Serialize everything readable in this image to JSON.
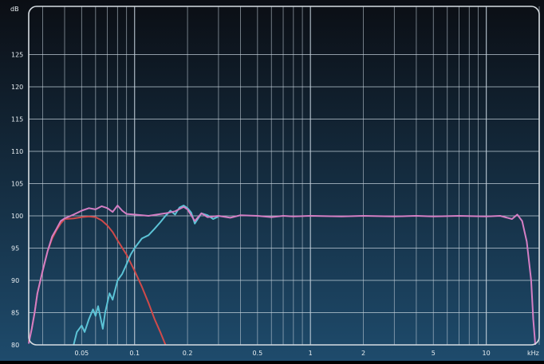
{
  "chart_data": {
    "type": "line",
    "title": "",
    "xlabel": "kHz",
    "ylabel": "dB",
    "x_scale": "log",
    "xlim": [
      0.025,
      20
    ],
    "ylim": [
      80,
      130
    ],
    "grid": true,
    "legend": "none",
    "x_ticks": [
      {
        "value": 0.05,
        "label": "0.05"
      },
      {
        "value": 0.1,
        "label": "0.1"
      },
      {
        "value": 0.2,
        "label": "0.2"
      },
      {
        "value": 0.5,
        "label": "0.5"
      },
      {
        "value": 1,
        "label": "1"
      },
      {
        "value": 2,
        "label": "2"
      },
      {
        "value": 5,
        "label": "5"
      },
      {
        "value": 10,
        "label": "10"
      }
    ],
    "y_ticks": [
      {
        "value": 80,
        "label": "80"
      },
      {
        "value": 85,
        "label": "85"
      },
      {
        "value": 90,
        "label": "90"
      },
      {
        "value": 95,
        "label": "95"
      },
      {
        "value": 100,
        "label": "100"
      },
      {
        "value": 105,
        "label": "105"
      },
      {
        "value": 110,
        "label": "110"
      },
      {
        "value": 115,
        "label": "115"
      },
      {
        "value": 120,
        "label": "120"
      },
      {
        "value": 125,
        "label": "125"
      }
    ],
    "colors": {
      "background_top": "#0b0e14",
      "background_bottom": "#1e4b6c",
      "grid": "#c9d6e0",
      "text": "#e8eef2",
      "frame": "#d7dde2"
    },
    "series": [
      {
        "color": "#cf4a4a",
        "points": [
          [
            0.025,
            80.5
          ],
          [
            0.026,
            82.5
          ],
          [
            0.027,
            85.0
          ],
          [
            0.028,
            88.0
          ],
          [
            0.03,
            91.5
          ],
          [
            0.032,
            94.5
          ],
          [
            0.034,
            96.5
          ],
          [
            0.036,
            97.8
          ],
          [
            0.038,
            98.8
          ],
          [
            0.04,
            99.5
          ],
          [
            0.045,
            99.6
          ],
          [
            0.05,
            99.8
          ],
          [
            0.055,
            99.9
          ],
          [
            0.06,
            99.8
          ],
          [
            0.065,
            99.3
          ],
          [
            0.07,
            98.5
          ],
          [
            0.075,
            97.5
          ],
          [
            0.08,
            96.2
          ],
          [
            0.09,
            94.0
          ],
          [
            0.1,
            91.5
          ],
          [
            0.11,
            89.0
          ],
          [
            0.12,
            86.5
          ],
          [
            0.13,
            84.0
          ],
          [
            0.14,
            82.0
          ],
          [
            0.15,
            80.0
          ]
        ]
      },
      {
        "color": "#5cc3d6",
        "points": [
          [
            0.045,
            80.0
          ],
          [
            0.047,
            82.0
          ],
          [
            0.05,
            83.0
          ],
          [
            0.052,
            82.0
          ],
          [
            0.055,
            84.0
          ],
          [
            0.058,
            85.5
          ],
          [
            0.06,
            84.5
          ],
          [
            0.062,
            86.0
          ],
          [
            0.066,
            82.5
          ],
          [
            0.068,
            85.0
          ],
          [
            0.072,
            88.0
          ],
          [
            0.075,
            87.0
          ],
          [
            0.08,
            90.0
          ],
          [
            0.085,
            91.0
          ],
          [
            0.09,
            92.5
          ],
          [
            0.095,
            94.0
          ],
          [
            0.1,
            95.0
          ],
          [
            0.11,
            96.5
          ],
          [
            0.12,
            97.0
          ],
          [
            0.13,
            98.0
          ],
          [
            0.14,
            99.0
          ],
          [
            0.15,
            100.0
          ],
          [
            0.16,
            100.8
          ],
          [
            0.17,
            100.2
          ],
          [
            0.18,
            101.3
          ],
          [
            0.19,
            101.6
          ],
          [
            0.2,
            101.2
          ],
          [
            0.21,
            100.5
          ],
          [
            0.22,
            98.8
          ],
          [
            0.24,
            100.4
          ],
          [
            0.26,
            100.1
          ],
          [
            0.28,
            99.5
          ],
          [
            0.3,
            99.9
          ]
        ]
      },
      {
        "color": "#d47fc4",
        "points": [
          [
            0.025,
            80.2
          ],
          [
            0.026,
            82.5
          ],
          [
            0.027,
            85.0
          ],
          [
            0.028,
            88.0
          ],
          [
            0.03,
            91.5
          ],
          [
            0.032,
            94.5
          ],
          [
            0.034,
            96.8
          ],
          [
            0.036,
            98.0
          ],
          [
            0.038,
            99.2
          ],
          [
            0.04,
            99.6
          ],
          [
            0.045,
            100.2
          ],
          [
            0.05,
            100.8
          ],
          [
            0.055,
            101.2
          ],
          [
            0.06,
            101.0
          ],
          [
            0.065,
            101.5
          ],
          [
            0.07,
            101.2
          ],
          [
            0.075,
            100.6
          ],
          [
            0.08,
            101.6
          ],
          [
            0.085,
            100.8
          ],
          [
            0.09,
            100.3
          ],
          [
            0.1,
            100.2
          ],
          [
            0.12,
            100.0
          ],
          [
            0.15,
            100.4
          ],
          [
            0.17,
            100.7
          ],
          [
            0.19,
            101.4
          ],
          [
            0.2,
            101.0
          ],
          [
            0.22,
            99.2
          ],
          [
            0.24,
            100.4
          ],
          [
            0.26,
            99.8
          ],
          [
            0.3,
            100.0
          ],
          [
            0.35,
            99.7
          ],
          [
            0.4,
            100.1
          ],
          [
            0.5,
            100.0
          ],
          [
            0.6,
            99.8
          ],
          [
            0.7,
            100.0
          ],
          [
            0.8,
            99.9
          ],
          [
            1.0,
            100.0
          ],
          [
            1.5,
            99.9
          ],
          [
            2.0,
            100.0
          ],
          [
            3.0,
            99.9
          ],
          [
            4.0,
            100.0
          ],
          [
            5.0,
            99.9
          ],
          [
            7.0,
            100.0
          ],
          [
            10.0,
            99.9
          ],
          [
            12.0,
            100.0
          ],
          [
            14.0,
            99.5
          ],
          [
            15.0,
            100.2
          ],
          [
            16.0,
            99.2
          ],
          [
            17.0,
            96.0
          ],
          [
            18.0,
            90.0
          ],
          [
            18.5,
            84.0
          ],
          [
            19.0,
            80.0
          ]
        ]
      }
    ]
  }
}
